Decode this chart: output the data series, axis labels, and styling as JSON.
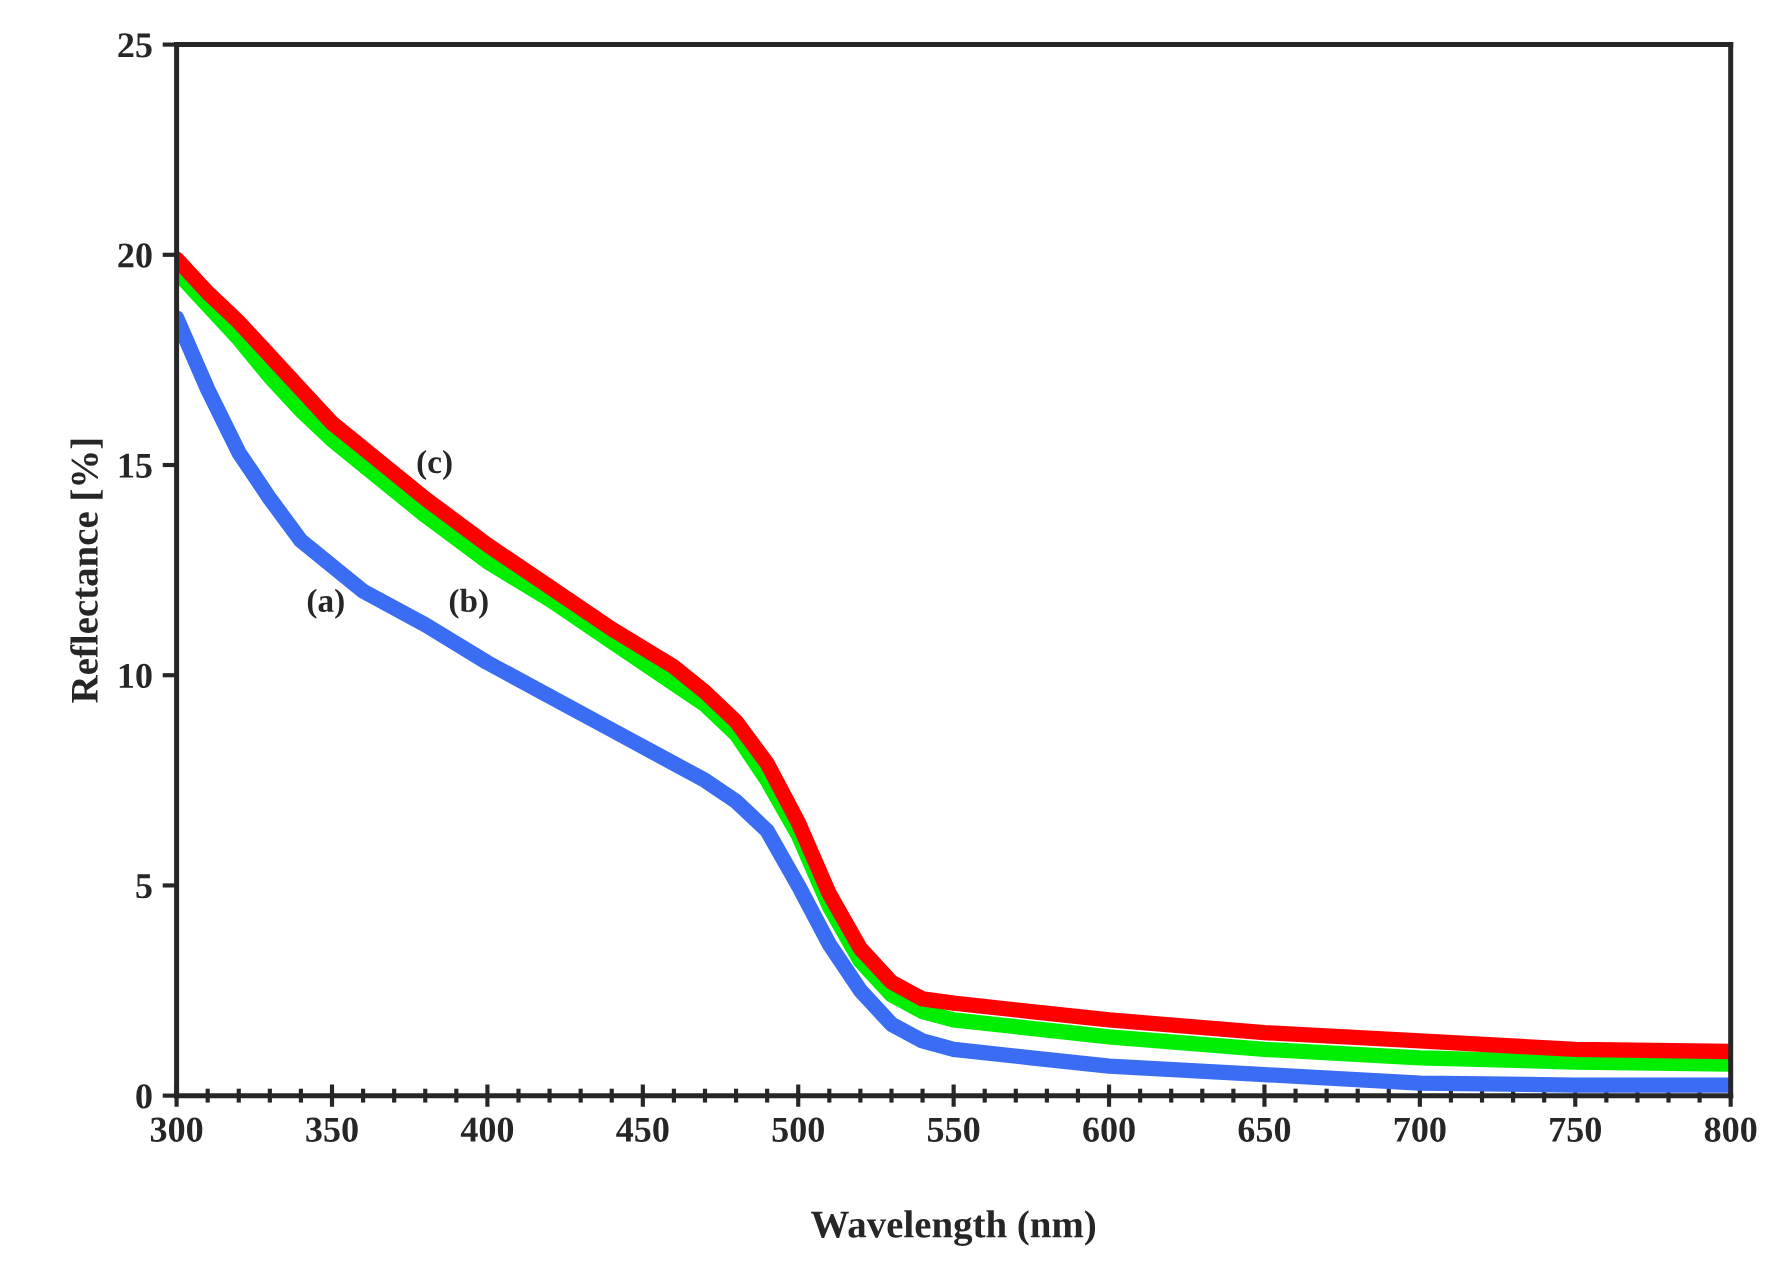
{
  "chart_data": {
    "type": "line",
    "xlabel": "Wavelength (nm)",
    "ylabel": "Reflectance [%]",
    "xlim": [
      300,
      800
    ],
    "xticks": [
      300,
      350,
      400,
      450,
      500,
      550,
      600,
      650,
      700,
      750,
      800
    ],
    "ylim": [
      0,
      25
    ],
    "yticks": [
      0,
      5,
      10,
      15,
      20,
      25
    ],
    "grid": false,
    "legend": false,
    "marker": "none",
    "line_style": "solid",
    "x": [
      300,
      310,
      320,
      330,
      340,
      350,
      360,
      380,
      400,
      420,
      440,
      460,
      470,
      480,
      490,
      500,
      510,
      520,
      530,
      540,
      550,
      575,
      600,
      650,
      700,
      750,
      800
    ],
    "series": [
      {
        "color": "#3a6cf4",
        "values": [
          18.5,
          16.8,
          15.3,
          14.2,
          13.2,
          12.6,
          12.0,
          11.2,
          10.3,
          9.5,
          8.7,
          7.9,
          7.5,
          7.0,
          6.3,
          5.0,
          3.6,
          2.5,
          1.7,
          1.3,
          1.1,
          0.9,
          0.7,
          0.5,
          0.3,
          0.25,
          0.25
        ]
      },
      {
        "color": "#00ee00",
        "values": [
          19.6,
          18.8,
          18.0,
          17.1,
          16.3,
          15.6,
          15.0,
          13.8,
          12.7,
          11.8,
          10.8,
          9.8,
          9.3,
          8.6,
          7.5,
          6.2,
          4.5,
          3.2,
          2.4,
          2.0,
          1.8,
          1.6,
          1.4,
          1.1,
          0.9,
          0.8,
          0.75
        ]
      },
      {
        "color": "#ff0000",
        "values": [
          19.9,
          19.1,
          18.4,
          17.6,
          16.8,
          16.0,
          15.4,
          14.2,
          13.1,
          12.1,
          11.1,
          10.2,
          9.6,
          8.9,
          7.9,
          6.5,
          4.8,
          3.5,
          2.7,
          2.3,
          2.2,
          2.0,
          1.8,
          1.5,
          1.3,
          1.1,
          1.05
        ]
      }
    ],
    "annotations": [
      "(a)",
      "(b)",
      "(c)"
    ]
  }
}
